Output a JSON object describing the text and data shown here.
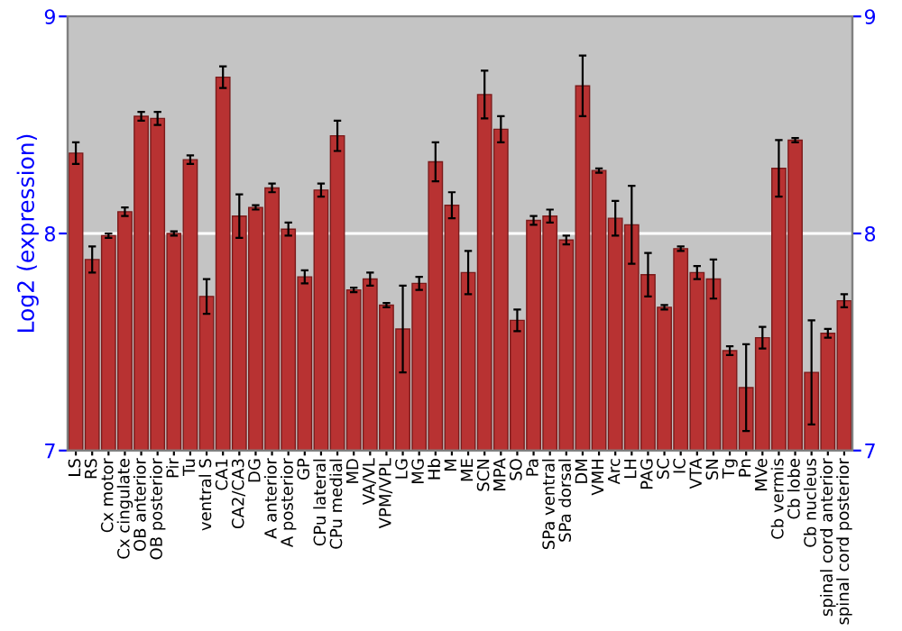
{
  "chart_data": {
    "type": "bar",
    "ylabel": "Log2 (expression)",
    "categories": [
      "LS",
      "RS",
      "Cx motor",
      "Cx cingulate",
      "OB anterior",
      "OB posterior",
      "Pir",
      "Tu",
      "ventral S",
      "CA1",
      "CA2/CA3",
      "DG",
      "A anterior",
      "A posterior",
      "GP",
      "CPu lateral",
      "CPu medial",
      "MD",
      "VA/VL",
      "VPM/VPL",
      "LG",
      "MG",
      "Hb",
      "M",
      "ME",
      "SCN",
      "MPA",
      "SO",
      "Pa",
      "SPa ventral",
      "SPa dorsal",
      "DM",
      "VMH",
      "Arc",
      "LH",
      "PAG",
      "SC",
      "IC",
      "VTA",
      "SN",
      "Tg",
      "Pn",
      "MVe",
      "Cb vermis",
      "Cb lobe",
      "Cb nucleus",
      "spinal cord anterior",
      "spinal cord posterior"
    ],
    "series": [
      {
        "color": "#b83232",
        "values": [
          8.37,
          7.88,
          7.99,
          8.1,
          8.54,
          8.53,
          8.0,
          8.34,
          7.71,
          8.72,
          8.08,
          8.12,
          8.21,
          8.02,
          7.8,
          8.2,
          8.45,
          7.74,
          7.79,
          7.67,
          7.56,
          7.77,
          8.33,
          8.13,
          7.82,
          8.64,
          8.48,
          7.6,
          8.06,
          8.08,
          7.97,
          8.68,
          8.29,
          8.07,
          8.04,
          7.81,
          7.66,
          7.93,
          7.82,
          7.79,
          7.46,
          7.29,
          7.52,
          8.3,
          8.43,
          7.36,
          7.54,
          7.69
        ],
        "errors": [
          0.05,
          0.06,
          0.01,
          0.02,
          0.02,
          0.03,
          0.01,
          0.02,
          0.08,
          0.05,
          0.1,
          0.01,
          0.02,
          0.03,
          0.03,
          0.03,
          0.07,
          0.01,
          0.03,
          0.01,
          0.2,
          0.03,
          0.09,
          0.06,
          0.1,
          0.11,
          0.06,
          0.05,
          0.02,
          0.03,
          0.02,
          0.14,
          0.01,
          0.08,
          0.18,
          0.1,
          0.01,
          0.01,
          0.03,
          0.09,
          0.02,
          0.2,
          0.05,
          0.13,
          0.01,
          0.24,
          0.02,
          0.03
        ]
      }
    ],
    "ylim": [
      7,
      9
    ],
    "yticks": [
      7,
      8,
      9
    ],
    "y2lim": [
      7,
      9
    ],
    "y2ticks": [
      7,
      8,
      9
    ],
    "grid": "y"
  }
}
